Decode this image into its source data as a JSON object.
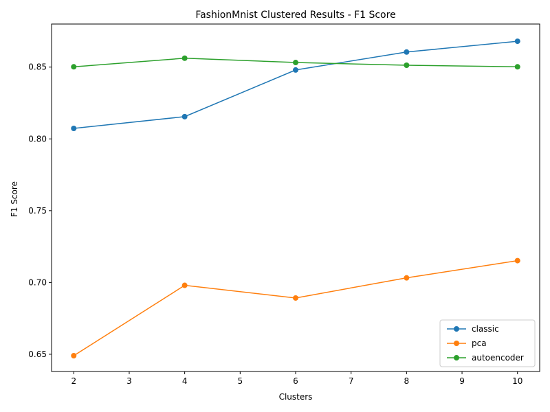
{
  "chart_data": {
    "type": "line",
    "title": "FashionMnist Clustered Results - F1 Score",
    "xlabel": "Clusters",
    "ylabel": "F1 Score",
    "x": [
      2,
      4,
      6,
      8,
      10
    ],
    "xlim": [
      1.6,
      10.4
    ],
    "ylim": [
      0.638,
      0.88
    ],
    "xticks": [
      2,
      3,
      4,
      5,
      6,
      7,
      8,
      9,
      10
    ],
    "xtick_labels": [
      "2",
      "3",
      "4",
      "5",
      "6",
      "7",
      "8",
      "9",
      "10"
    ],
    "yticks": [
      0.65,
      0.7,
      0.75,
      0.8,
      0.85
    ],
    "ytick_labels": [
      "0.65",
      "0.70",
      "0.75",
      "0.80",
      "0.85"
    ],
    "grid": false,
    "legend_position": "bottom-right",
    "series": [
      {
        "name": "classic",
        "color": "#1f77b4",
        "values": [
          0.8073,
          0.8155,
          0.848,
          0.8605,
          0.868
        ]
      },
      {
        "name": "pca",
        "color": "#ff7f0e",
        "values": [
          0.649,
          0.698,
          0.6892,
          0.7032,
          0.7152
        ]
      },
      {
        "name": "autoencoder",
        "color": "#2ca02c",
        "values": [
          0.8502,
          0.8562,
          0.8532,
          0.8513,
          0.8502
        ]
      }
    ]
  }
}
